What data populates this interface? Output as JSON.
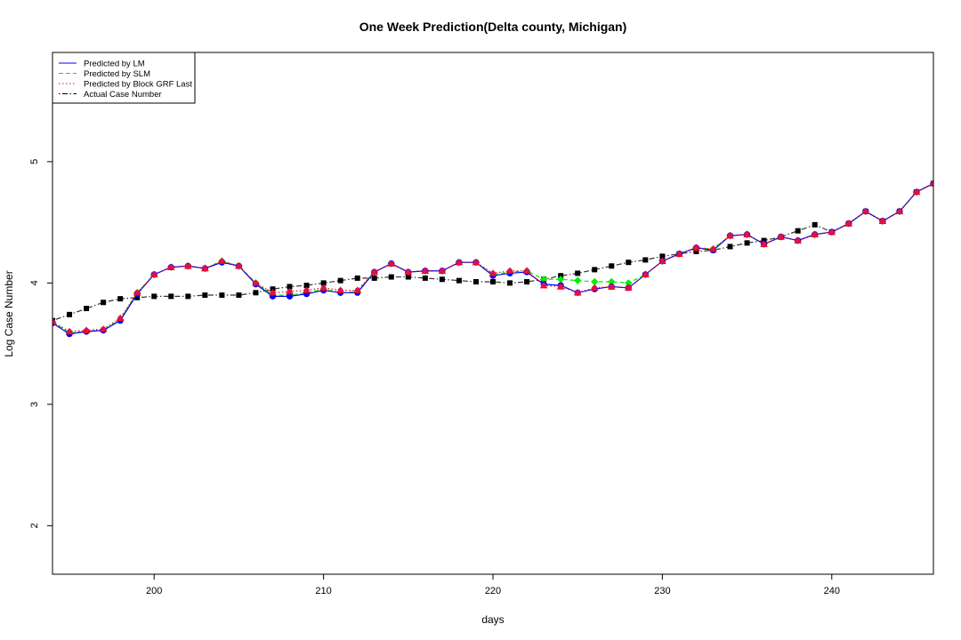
{
  "chart_data": {
    "type": "line",
    "title": "One Week Prediction(Delta county, Michigan)",
    "xlabel": "days",
    "ylabel": "Log Case Number",
    "xlim": [
      194,
      246
    ],
    "ylim": [
      1.6,
      5.9
    ],
    "xticks": [
      200,
      210,
      220,
      230,
      240
    ],
    "yticks": [
      2,
      3,
      4,
      5
    ],
    "grid": false,
    "legend_position": "top-left",
    "legend": [
      {
        "label": "Predicted by LM",
        "color": "#0000ff",
        "dash": "solid"
      },
      {
        "label": "Predicted by SLM",
        "color": "#00ee00",
        "dash": "dashed"
      },
      {
        "label": "Predicted by Block GRF Last",
        "color": "#ff0000",
        "dash": "dotted"
      },
      {
        "label": "Actual Case Number",
        "color": "#000000",
        "dash": "dotdash"
      }
    ],
    "x": [
      194,
      195,
      196,
      197,
      198,
      199,
      200,
      201,
      202,
      203,
      204,
      205,
      206,
      207,
      208,
      209,
      210,
      211,
      212,
      213,
      214,
      215,
      216,
      217,
      218,
      219,
      220,
      221,
      222,
      223,
      224,
      225,
      226,
      227,
      228,
      229,
      230,
      231,
      232,
      233,
      234,
      235,
      236,
      237,
      238,
      239,
      240,
      241,
      242,
      243,
      244,
      245,
      246
    ],
    "series": [
      {
        "name": "Predicted by LM",
        "color": "#0000ff",
        "marker": "circle",
        "values": [
          3.67,
          3.58,
          3.6,
          3.61,
          3.69,
          3.91,
          4.07,
          4.13,
          4.14,
          4.12,
          4.17,
          4.14,
          3.99,
          3.89,
          3.89,
          3.91,
          3.94,
          3.92,
          3.92,
          4.09,
          4.16,
          4.09,
          4.1,
          4.1,
          4.17,
          4.17,
          4.06,
          4.08,
          4.09,
          3.99,
          3.98,
          3.92,
          3.95,
          3.97,
          3.96,
          4.07,
          4.18,
          4.24,
          4.29,
          4.27,
          4.39,
          4.4,
          4.32,
          4.38,
          4.35,
          4.4,
          4.42,
          4.49,
          4.59,
          4.51,
          4.59,
          4.75,
          4.82
        ]
      },
      {
        "name": "Predicted by SLM",
        "color": "#00ee00",
        "marker": "diamond",
        "values": [
          3.68,
          3.59,
          3.6,
          3.61,
          3.7,
          3.92,
          4.07,
          4.13,
          4.14,
          4.12,
          4.18,
          4.14,
          4.0,
          3.9,
          3.9,
          3.92,
          3.95,
          3.92,
          3.93,
          4.09,
          4.16,
          4.09,
          4.1,
          4.1,
          4.17,
          4.17,
          4.07,
          4.09,
          4.1,
          4.03,
          4.03,
          4.02,
          4.01,
          4.01,
          4.0,
          4.07,
          4.18,
          4.24,
          4.29,
          4.28,
          4.39,
          4.4,
          4.32,
          4.38,
          4.35,
          4.4,
          4.42,
          4.49,
          4.59,
          4.51,
          4.59,
          4.75,
          4.82
        ]
      },
      {
        "name": "Predicted by Block GRF Last",
        "color": "#ff0000",
        "marker": "triangle",
        "values": [
          3.68,
          3.6,
          3.61,
          3.62,
          3.71,
          3.92,
          4.07,
          4.13,
          4.14,
          4.12,
          4.18,
          4.14,
          4.0,
          3.92,
          3.93,
          3.94,
          3.96,
          3.94,
          3.94,
          4.09,
          4.16,
          4.09,
          4.1,
          4.1,
          4.17,
          4.17,
          4.08,
          4.1,
          4.1,
          3.98,
          3.97,
          3.92,
          3.96,
          3.97,
          3.96,
          4.07,
          4.18,
          4.24,
          4.29,
          4.28,
          4.39,
          4.4,
          4.32,
          4.38,
          4.35,
          4.4,
          4.42,
          4.49,
          4.59,
          4.51,
          4.59,
          4.75,
          4.82
        ]
      },
      {
        "name": "Actual Case Number",
        "color": "#000000",
        "marker": "square",
        "values": [
          3.69,
          3.74,
          3.79,
          3.84,
          3.87,
          3.88,
          3.89,
          3.89,
          3.89,
          3.9,
          3.9,
          3.9,
          3.92,
          3.95,
          3.97,
          3.98,
          4.0,
          4.02,
          4.04,
          4.04,
          4.05,
          4.05,
          4.04,
          4.03,
          4.02,
          4.01,
          4.01,
          4.0,
          4.01,
          4.03,
          4.06,
          4.08,
          4.11,
          4.14,
          4.17,
          4.19,
          4.22,
          4.24,
          4.26,
          4.27,
          4.3,
          4.33,
          4.35,
          4.38,
          4.43,
          4.48,
          4.42,
          4.49,
          4.59,
          4.51,
          4.59,
          4.75,
          4.82
        ]
      }
    ]
  }
}
